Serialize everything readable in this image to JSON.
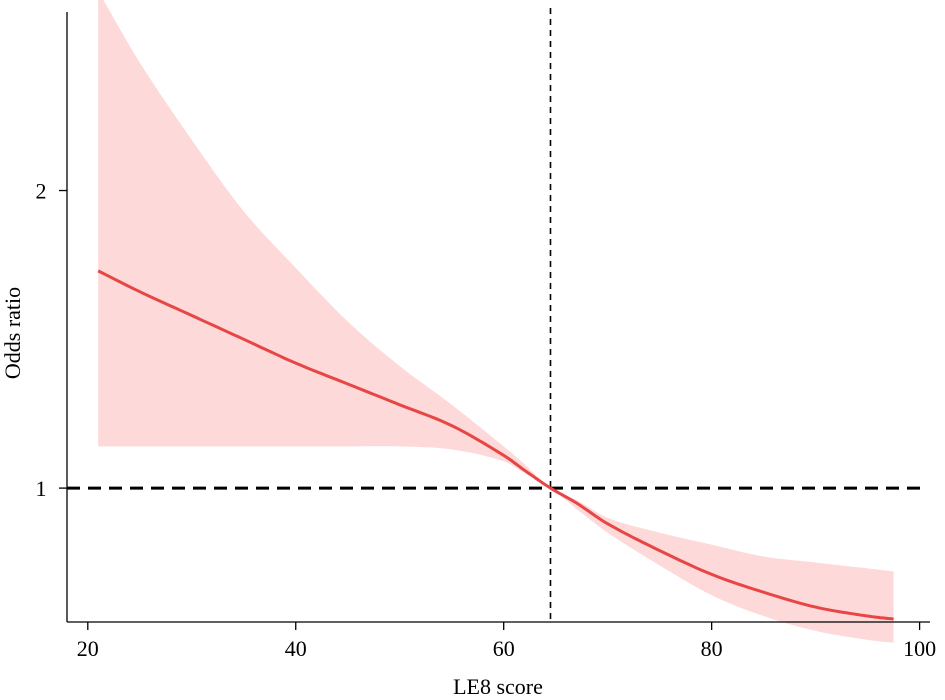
{
  "chart_data": {
    "type": "line",
    "title": "",
    "xlabel": "LE8 score",
    "ylabel": "Odds ratio",
    "xlim": [
      18,
      101
    ],
    "ylim": [
      0.55,
      2.6
    ],
    "xticks": [
      20,
      40,
      60,
      80,
      100
    ],
    "xtick_labels": [
      "20",
      "40",
      "60",
      "80",
      "100"
    ],
    "yticks": [
      1,
      2
    ],
    "ytick_labels": [
      "1",
      "2"
    ],
    "reference_lines": {
      "horizontal_y": 1,
      "vertical_x": 64.5
    },
    "grid": false,
    "legend": "none",
    "colors": {
      "line": "#e84545",
      "band": "#fdd9d9",
      "reference": "#000000"
    },
    "series": [
      {
        "x": [
          21,
          25,
          30,
          35,
          40,
          45,
          50,
          55,
          60,
          62,
          64.5,
          67,
          70,
          75,
          80,
          85,
          90,
          95,
          97.5
        ],
        "values": [
          1.73,
          1.66,
          1.58,
          1.5,
          1.42,
          1.35,
          1.28,
          1.21,
          1.11,
          1.06,
          1.0,
          0.95,
          0.88,
          0.79,
          0.71,
          0.65,
          0.6,
          0.57,
          0.56
        ],
        "lower": [
          1.14,
          1.14,
          1.14,
          1.14,
          1.14,
          1.14,
          1.14,
          1.13,
          1.09,
          1.05,
          1.0,
          0.93,
          0.85,
          0.74,
          0.64,
          0.57,
          0.52,
          0.49,
          0.48
        ],
        "upper": [
          2.67,
          2.43,
          2.17,
          1.93,
          1.74,
          1.56,
          1.41,
          1.28,
          1.14,
          1.08,
          1.0,
          0.96,
          0.9,
          0.85,
          0.81,
          0.77,
          0.75,
          0.73,
          0.72
        ]
      }
    ]
  }
}
